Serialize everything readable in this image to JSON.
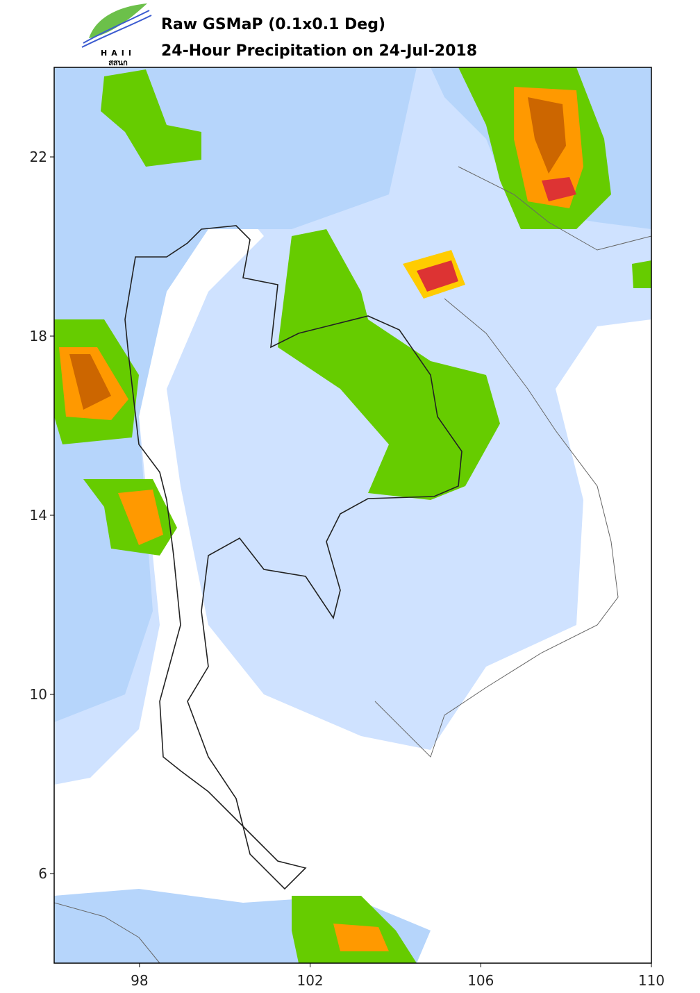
{
  "header": {
    "logo_text": "HAII",
    "logo_subtext": "สสนก",
    "title": "Raw GSMaP (0.1x0.1 Deg)",
    "subtitle": "24-Hour Precipitation on 24-Jul-2018"
  },
  "map": {
    "xlim": [
      96,
      110
    ],
    "ylim": [
      4,
      24
    ],
    "xticks": [
      98,
      102,
      106,
      110
    ],
    "yticks": [
      6,
      10,
      14,
      18,
      22
    ]
  }
}
